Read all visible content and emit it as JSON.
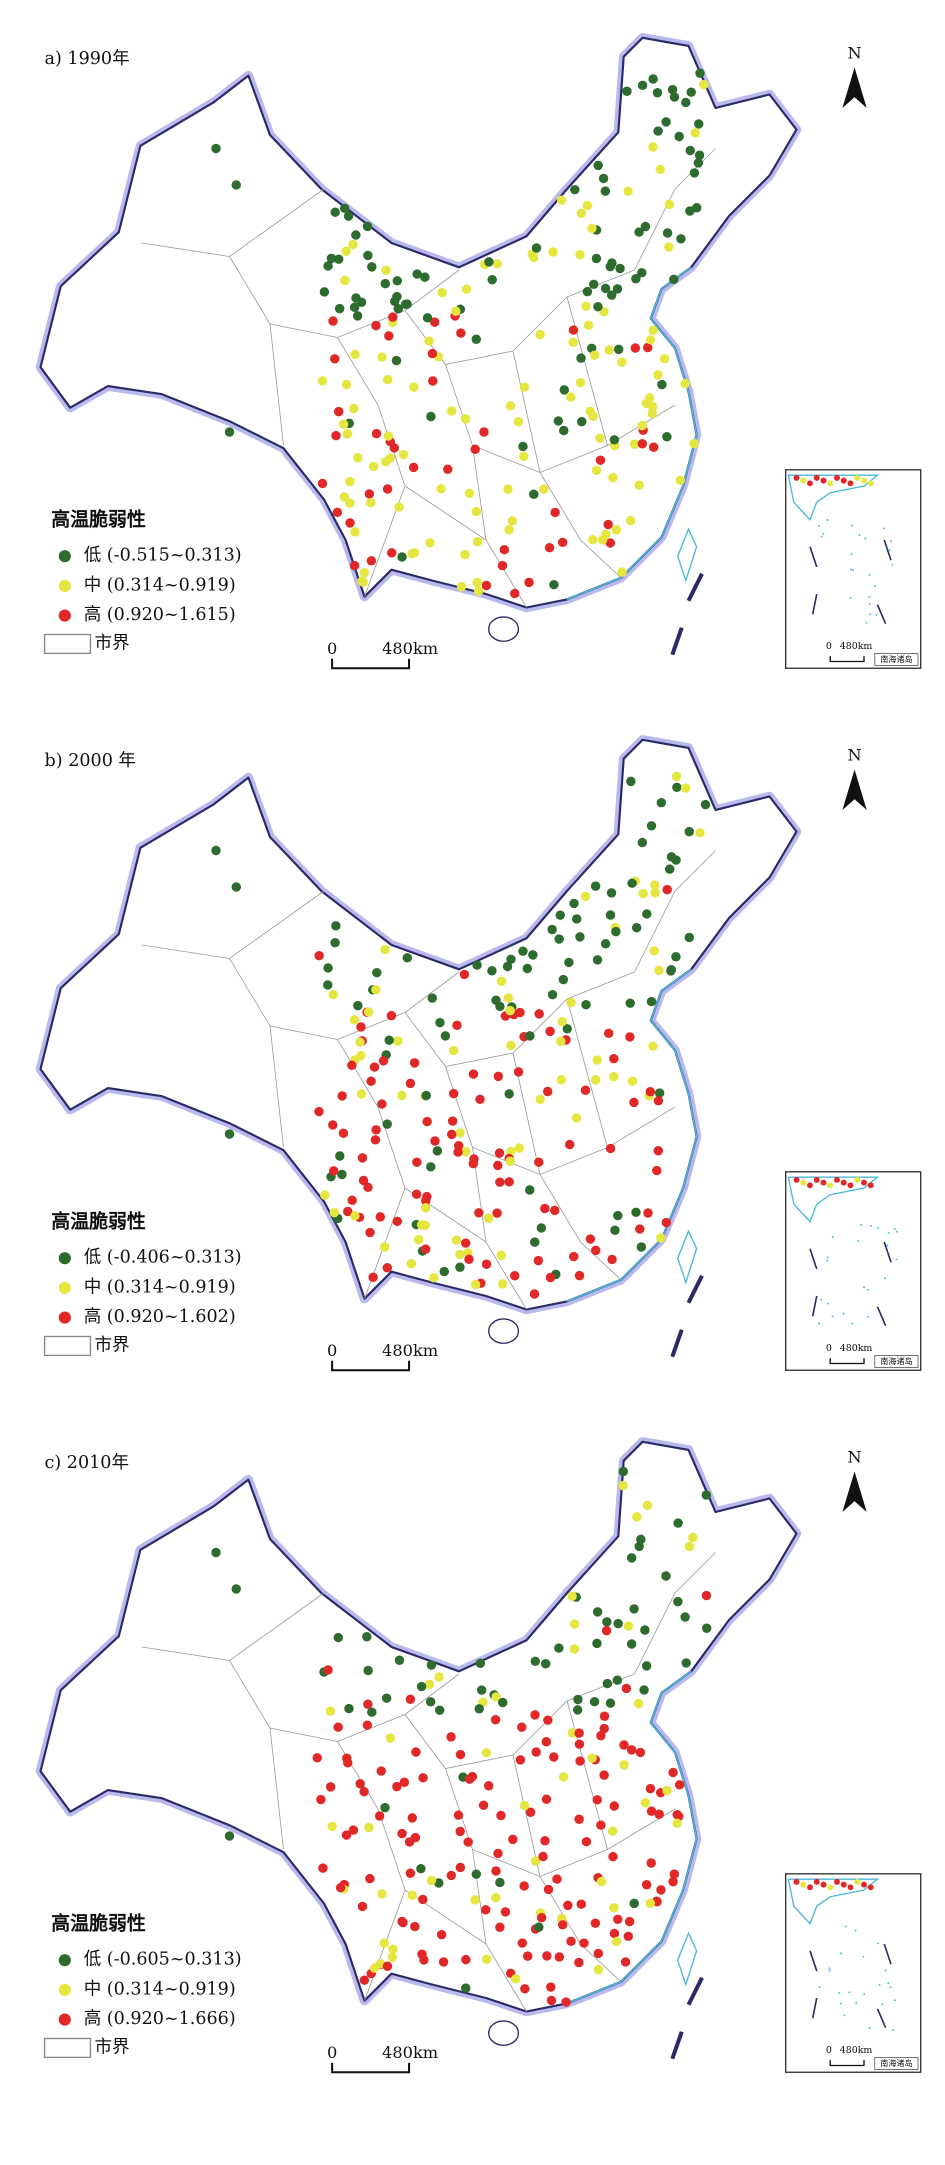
{
  "north": "N",
  "panels": [
    {
      "label": "a) 1990年",
      "legend_title": "高温脆弱性",
      "classes": [
        {
          "label": "低 (-0.515~0.313)",
          "color": "#2e6b2e"
        },
        {
          "label": "中 (0.314~0.919)",
          "color": "#e6e640"
        },
        {
          "label": "高 (0.920~1.615)",
          "color": "#e02828"
        }
      ],
      "boundary": "市界",
      "scale": [
        "0",
        "480km"
      ],
      "inset": {
        "scale": [
          "0",
          "480km"
        ],
        "label": "南海诸岛"
      }
    },
    {
      "label": "b) 2000 年",
      "legend_title": "高温脆弱性",
      "classes": [
        {
          "label": "低 (-0.406~0.313)",
          "color": "#2e6b2e"
        },
        {
          "label": "中 (0.314~0.919)",
          "color": "#e6e640"
        },
        {
          "label": "高 (0.920~1.602)",
          "color": "#e02828"
        }
      ],
      "boundary": "市界",
      "scale": [
        "0",
        "480km"
      ],
      "inset": {
        "scale": [
          "0",
          "480km"
        ],
        "label": "南海诸岛"
      }
    },
    {
      "label": "c) 2010年",
      "legend_title": "高温脆弱性",
      "classes": [
        {
          "label": "低 (-0.605~0.313)",
          "color": "#2e6b2e"
        },
        {
          "label": "中 (0.314~0.919)",
          "color": "#e6e640"
        },
        {
          "label": "高 (0.920~1.666)",
          "color": "#e02828"
        }
      ],
      "boundary": "市界",
      "scale": [
        "0",
        "480km"
      ],
      "inset": {
        "scale": [
          "0",
          "480km"
        ],
        "label": "南海诸岛"
      }
    }
  ]
}
